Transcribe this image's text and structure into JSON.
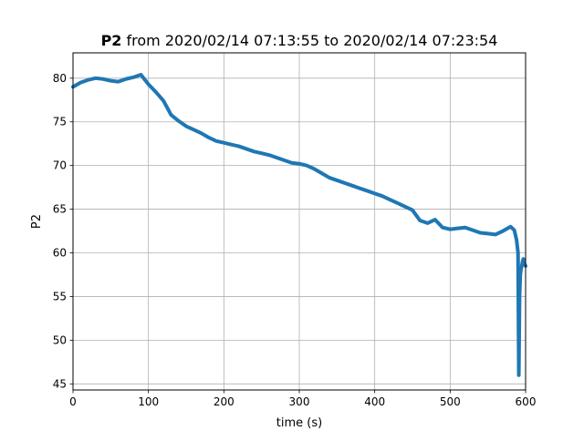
{
  "chart_data": {
    "type": "line",
    "title_bold": "P2",
    "title_rest": " from 2020/02/14 07:13:55 to 2020/02/14 07:23:54",
    "xlabel": "time (s)",
    "ylabel": "P2",
    "xlim": [
      0,
      600
    ],
    "ylim": [
      44.3,
      82.9
    ],
    "xticks": [
      0,
      100,
      200,
      300,
      400,
      500,
      600
    ],
    "yticks": [
      45,
      50,
      55,
      60,
      65,
      70,
      75,
      80
    ],
    "grid": true,
    "line_color": "#1f77b4",
    "series": [
      {
        "x": [
          0,
          10,
          20,
          30,
          40,
          50,
          60,
          70,
          80,
          90,
          100,
          110,
          120,
          130,
          140,
          150,
          160,
          170,
          180,
          190,
          200,
          210,
          220,
          230,
          240,
          250,
          260,
          270,
          280,
          290,
          300,
          310,
          320,
          330,
          340,
          350,
          360,
          370,
          380,
          390,
          400,
          410,
          420,
          430,
          440,
          450,
          460,
          470,
          480,
          490,
          500,
          510,
          520,
          530,
          540,
          550,
          560,
          570,
          580,
          585,
          588,
          590,
          591,
          592,
          593,
          594,
          595,
          596,
          597,
          598,
          600
        ],
        "y": [
          79.0,
          79.5,
          79.8,
          80.0,
          79.9,
          79.7,
          79.6,
          79.9,
          80.1,
          80.4,
          79.3,
          78.4,
          77.4,
          75.8,
          75.1,
          74.5,
          74.1,
          73.7,
          73.2,
          72.8,
          72.6,
          72.4,
          72.2,
          71.9,
          71.6,
          71.4,
          71.2,
          70.9,
          70.6,
          70.3,
          70.2,
          70.0,
          69.6,
          69.1,
          68.6,
          68.3,
          68.0,
          67.7,
          67.4,
          67.1,
          66.8,
          66.5,
          66.1,
          65.7,
          65.3,
          64.9,
          63.7,
          63.4,
          63.8,
          62.9,
          62.7,
          62.8,
          62.9,
          62.6,
          62.3,
          62.2,
          62.1,
          62.5,
          63.0,
          62.6,
          61.5,
          60.0,
          46.0,
          55.0,
          57.5,
          58.2,
          58.5,
          59.0,
          59.3,
          58.8,
          58.5
        ]
      }
    ]
  }
}
